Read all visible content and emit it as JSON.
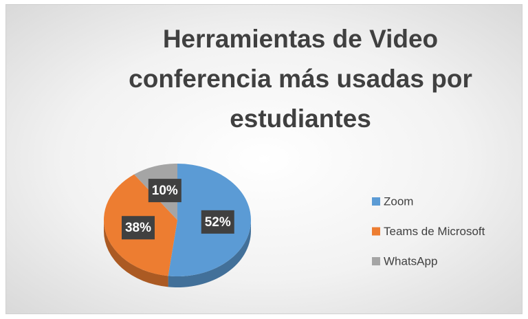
{
  "chart_data": {
    "type": "pie",
    "title": "Herramientas de Video conferencia más usadas por estudiantes",
    "categories": [
      "Zoom",
      "Teams de Microsoft",
      "WhatsApp"
    ],
    "values": [
      52,
      38,
      10
    ],
    "value_labels": [
      "52%",
      "38%",
      "10%"
    ],
    "colors": [
      "#5b9bd5",
      "#ed7d31",
      "#a5a5a5"
    ],
    "legend": "right"
  }
}
